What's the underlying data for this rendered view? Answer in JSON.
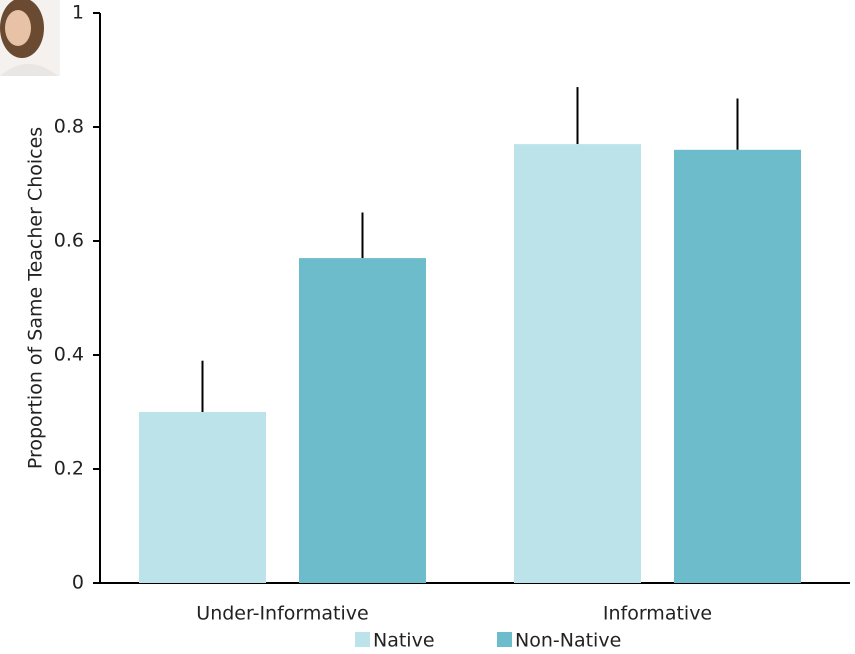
{
  "chart_data": {
    "type": "bar",
    "y_label": "Proportion of Same Teacher Choices",
    "categories": [
      "Under-Informative",
      "Informative"
    ],
    "series": [
      {
        "name": "Native",
        "color": "#bde3ea",
        "values": [
          0.3,
          0.77
        ],
        "errors": [
          0.09,
          0.1
        ]
      },
      {
        "name": "Non-Native",
        "color": "#6dbccb",
        "values": [
          0.57,
          0.76
        ],
        "errors": [
          0.08,
          0.09
        ]
      }
    ],
    "ylim": [
      0,
      1
    ],
    "yticks": [
      0,
      0.2,
      0.4,
      0.6,
      0.8,
      1
    ],
    "grid": false,
    "legend": "bottom"
  }
}
